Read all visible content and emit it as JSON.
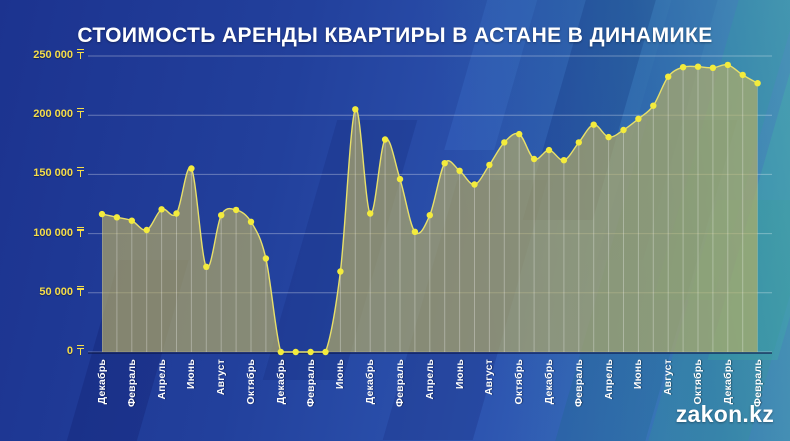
{
  "title": "СТОИМОСТЬ АРЕНДЫ КВАРТИРЫ В АСТАНЕ В ДИНАМИКЕ",
  "watermark": "zakon.kz",
  "y_axis": {
    "currency": "₸",
    "labels": [
      "250 000",
      "200 000",
      "150 000",
      "100 000",
      "50 000",
      "0"
    ]
  },
  "chart_data": {
    "type": "area",
    "title": "СТОИМОСТЬ АРЕНДЫ КВАРТИРЫ В АСТАНЕ В ДИНАМИКЕ",
    "ylabel": "₸",
    "ylim": [
      0,
      250000
    ],
    "y_ticks": [
      250000,
      200000,
      150000,
      100000,
      50000,
      0
    ],
    "grid": true,
    "x_tick_labels": [
      "Декабрь",
      "Февраль",
      "Апрель",
      "Июнь",
      "Август",
      "Октябрь",
      "Декабрь",
      "Февраль",
      "Июнь",
      "Декабрь",
      "Февраль",
      "Апрель",
      "Июнь",
      "Август",
      "Октябрь",
      "Декабрь",
      "Февраль",
      "Апрель",
      "Июнь",
      "Август",
      "Октябрь",
      "Декабрь",
      "Февраль"
    ],
    "tick_every_n_points": 2,
    "values": [
      116500,
      113800,
      110900,
      103000,
      120500,
      117000,
      155000,
      72000,
      115500,
      120000,
      110000,
      79000,
      0,
      0,
      0,
      0,
      68000,
      205000,
      117000,
      179500,
      146000,
      101500,
      115500,
      159500,
      153000,
      141500,
      158000,
      177000,
      184000,
      163000,
      170500,
      162000,
      177000,
      192000,
      181500,
      187500,
      197000,
      208000,
      232500,
      240500,
      241000,
      240000,
      242500,
      234000,
      227000
    ],
    "colors": {
      "line": "#e8e06a",
      "marker": "#f3eb3d",
      "fill": "rgba(186,176,98,0.66)",
      "axis_label_text": "#f5dd4a",
      "tick_label_text": "#ffffff",
      "gridline": "rgba(255,255,255,0.32)",
      "background": "#22409c",
      "title_text": "#ffffff"
    }
  }
}
